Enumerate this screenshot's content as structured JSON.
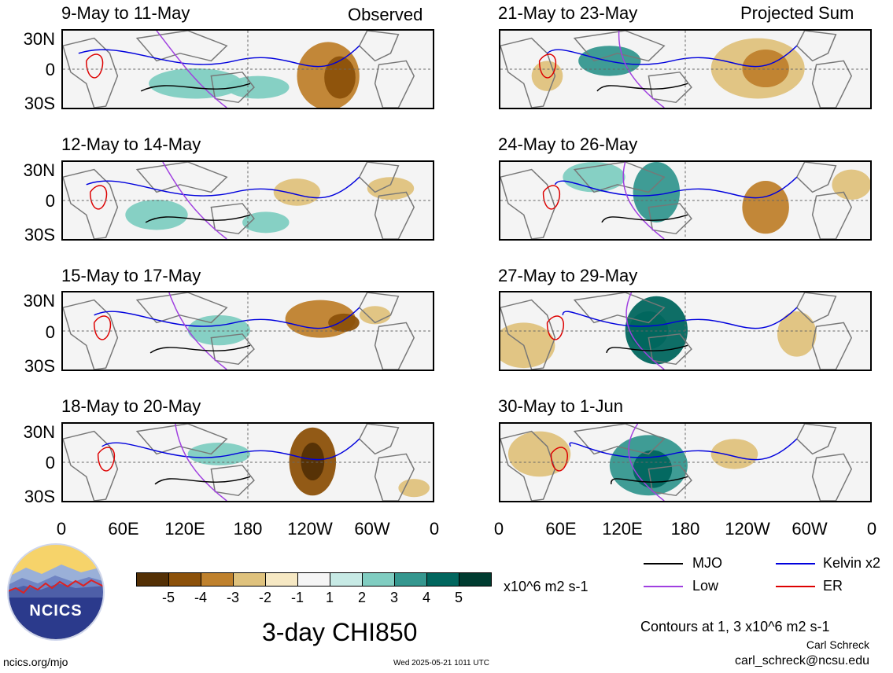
{
  "chart_data": {
    "type": "heatmap",
    "title": "3-day CHI850",
    "units": "x10^6 m2 s-1",
    "columns": [
      {
        "header": "Observed",
        "panels": [
          "9-May to 11-May",
          "12-May to 14-May",
          "15-May to 17-May",
          "18-May to 20-May"
        ]
      },
      {
        "header": "Projected Sum",
        "panels": [
          "21-May to 23-May",
          "24-May to 26-May",
          "27-May to 29-May",
          "30-May to 1-Jun"
        ]
      }
    ],
    "y_ticks": [
      "30N",
      "0",
      "30S"
    ],
    "x_ticks": [
      "0",
      "60E",
      "120E",
      "180",
      "120W",
      "60W",
      "0"
    ],
    "colorbar": {
      "labels": [
        "-5",
        "-4",
        "-3",
        "-2",
        "-1",
        "1",
        "2",
        "3",
        "4",
        "5"
      ],
      "colors": [
        "#543005",
        "#8c510a",
        "#bf812d",
        "#dfc27d",
        "#f6e8c3",
        "#f5f5f5",
        "#c7eae5",
        "#80cdc1",
        "#35978f",
        "#01665e",
        "#003c30"
      ]
    },
    "legend": [
      {
        "label": "MJO",
        "color": "#000000"
      },
      {
        "label": "Kelvin x2",
        "color": "#0000dd"
      },
      {
        "label": "Low",
        "color": "#a040e0"
      },
      {
        "label": "ER",
        "color": "#dd0000"
      }
    ],
    "contour_note": "Contours at 1, 3 x10^6 m2 s-1",
    "author": "Carl Schreck",
    "email": "carl_schreck@ncsu.edu",
    "timestamp": "Wed 2025-05-21 1011 UTC",
    "site": "ncics.org/mjo",
    "logo_text": "NCICS"
  }
}
